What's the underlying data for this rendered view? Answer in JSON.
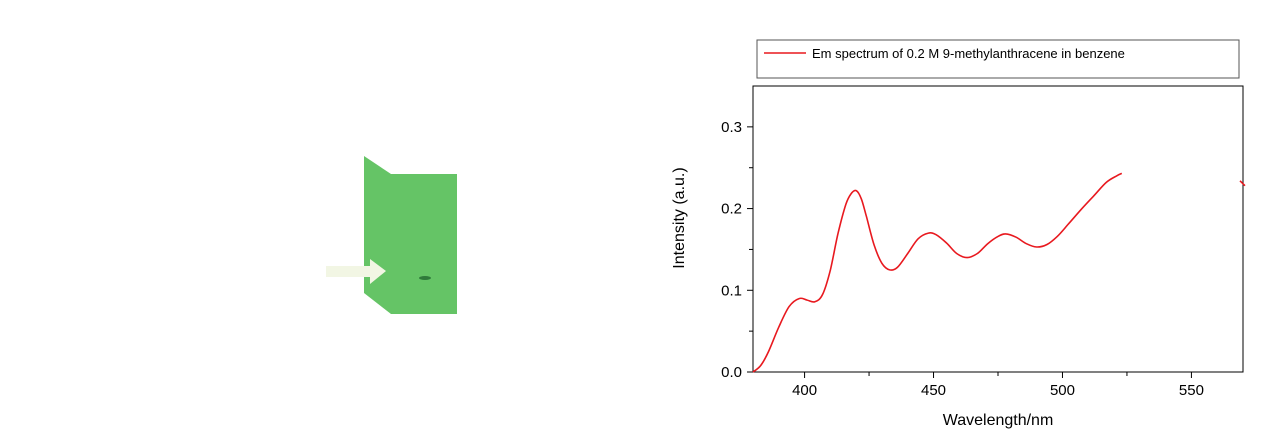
{
  "illustration": {
    "plate_color": "#65c466",
    "spot_color": "#2f7a3a",
    "arrow_color": "#f2f6e4"
  },
  "chart_data": {
    "type": "line",
    "xlabel": "Wavelength/nm",
    "ylabel": "Intensity (a.u.)",
    "xlim": [
      380,
      570
    ],
    "ylim": [
      0.0,
      0.35
    ],
    "x_ticks": [
      400,
      450,
      500,
      550
    ],
    "x_tick_labels": [
      "400",
      "450",
      "500",
      "550"
    ],
    "y_ticks": [
      0.0,
      0.1,
      0.2,
      0.3
    ],
    "y_tick_labels": [
      "0.0",
      "0.1",
      "0.2",
      "0.3"
    ],
    "grid": false,
    "legend_placement": "top, above plot",
    "series": [
      {
        "name": "Em spectrum of 0.2 M 9-methylanthracene in benzene",
        "color": "#e8191f",
        "x": [
          380,
          383,
          386,
          390,
          394,
          398,
          401,
          404,
          407,
          410,
          413,
          416,
          418,
          420,
          422,
          424,
          427,
          430,
          433,
          436,
          440,
          444,
          448,
          451,
          455,
          459,
          463,
          467,
          471,
          475,
          478,
          482,
          486,
          490,
          494,
          498,
          502,
          507,
          512,
          517,
          521,
          523
        ],
        "y": [
          0.0,
          0.008,
          0.025,
          0.055,
          0.08,
          0.09,
          0.088,
          0.086,
          0.095,
          0.125,
          0.17,
          0.205,
          0.218,
          0.222,
          0.212,
          0.19,
          0.155,
          0.133,
          0.125,
          0.128,
          0.145,
          0.163,
          0.17,
          0.168,
          0.158,
          0.145,
          0.14,
          0.145,
          0.157,
          0.166,
          0.169,
          0.165,
          0.157,
          0.153,
          0.156,
          0.166,
          0.18,
          0.198,
          0.215,
          0.232,
          0.24,
          0.243
        ]
      }
    ]
  }
}
